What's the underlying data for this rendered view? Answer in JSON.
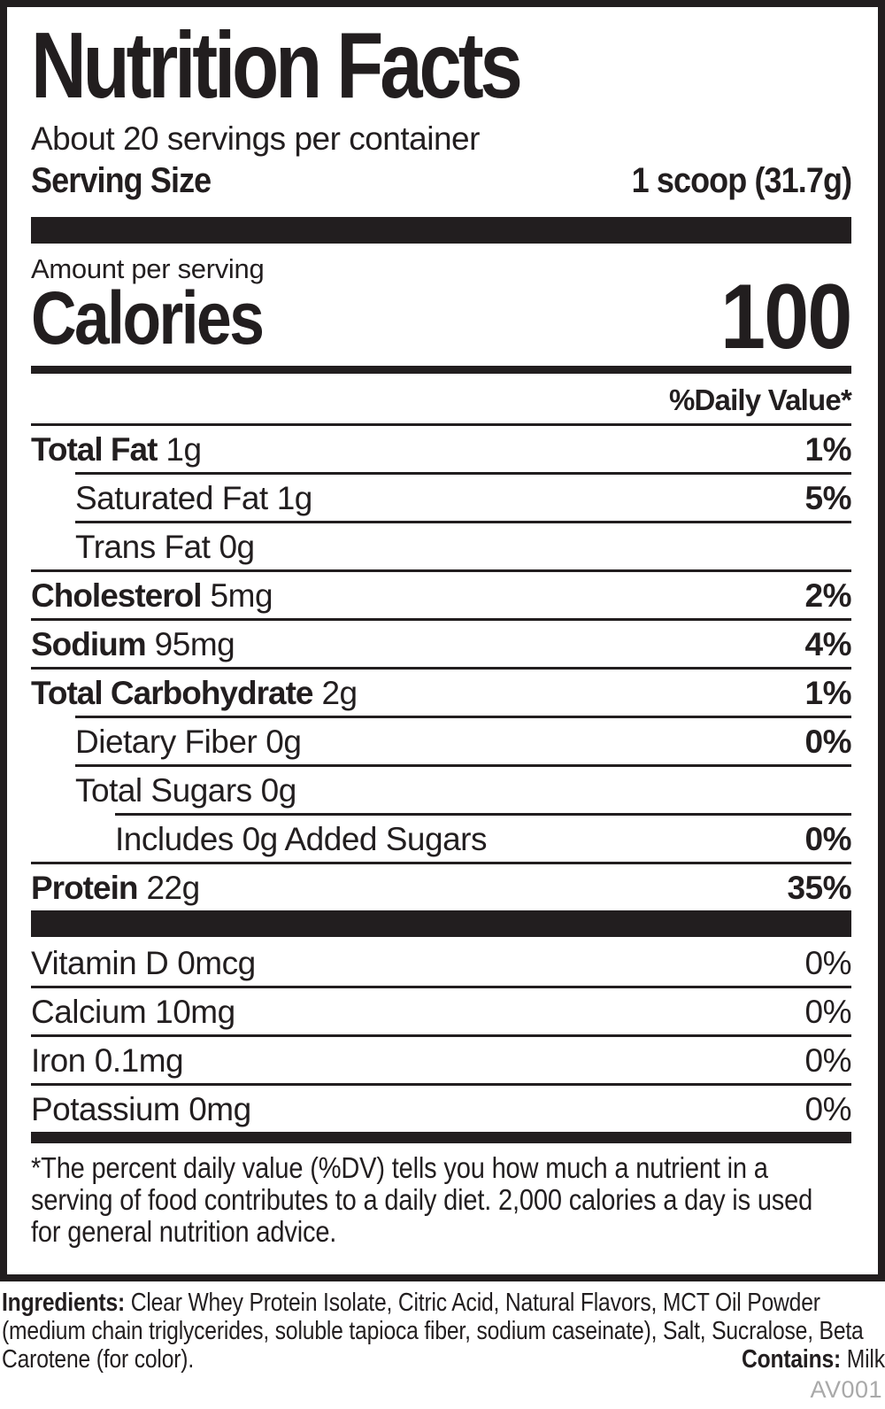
{
  "colors": {
    "ink": "#221e1f",
    "code_gray": "#a9a9a9",
    "background": "#ffffff"
  },
  "label": {
    "title": "Nutrition Facts",
    "servings_per_container": "About 20 servings per container",
    "serving_size_label": "Serving Size",
    "serving_size_value": "1 scoop (31.7g)",
    "amount_per_serving_label": "Amount per serving",
    "calories_label": "Calories",
    "calories_value": "100",
    "daily_value_header": "%Daily Value*",
    "rows": [
      {
        "name": "Total Fat",
        "amount": "1g",
        "dv": "1%"
      },
      {
        "name": "Saturated Fat",
        "amount": "1g",
        "dv": ""
      },
      {
        "name": "Trans Fat",
        "amount": "0g",
        "dv": ""
      },
      {
        "name": "Cholesterol",
        "amount": "5mg",
        "dv": "2%"
      },
      {
        "name": "Sodium",
        "amount": "95mg",
        "dv": "4%"
      },
      {
        "name": "Total Carbohydrate",
        "amount": "2g",
        "dv": "1%"
      },
      {
        "name": "Dietary Fiber",
        "amount": "0g",
        "dv": "0%"
      },
      {
        "name": "Total Sugars",
        "amount": "0g",
        "dv": ""
      },
      {
        "name": "Includes 0g Added Sugars",
        "amount": "",
        "dv": "0%"
      },
      {
        "name": "Protein",
        "amount": "22g",
        "dv": "35%"
      },
      {
        "name": "Vitamin D",
        "amount": "0mcg",
        "dv": "0%"
      },
      {
        "name": "Calcium",
        "amount": "10mg",
        "dv": "0%"
      },
      {
        "name": "Iron",
        "amount": "0.1mg",
        "dv": "0%"
      },
      {
        "name": "Potassium",
        "amount": "0mg",
        "dv": "0%"
      }
    ],
    "saturated_fat_dv": "5%",
    "footnote": "*The percent daily value (%DV) tells you how much a nutrient in a serving of food contributes to a daily diet. 2,000 calories a day is used for general nutrition advice."
  },
  "ingredients": {
    "label": "Ingredients:",
    "text": "Clear Whey Protein Isolate, Citric Acid, Natural Flavors, MCT Oil Powder (medium chain triglycerides, soluble tapioca fiber, sodium caseinate), Salt, Sucralose, Beta Carotene (for color).",
    "contains_label": "Contains:",
    "contains_value": "Milk"
  },
  "footer_code": "AV001"
}
